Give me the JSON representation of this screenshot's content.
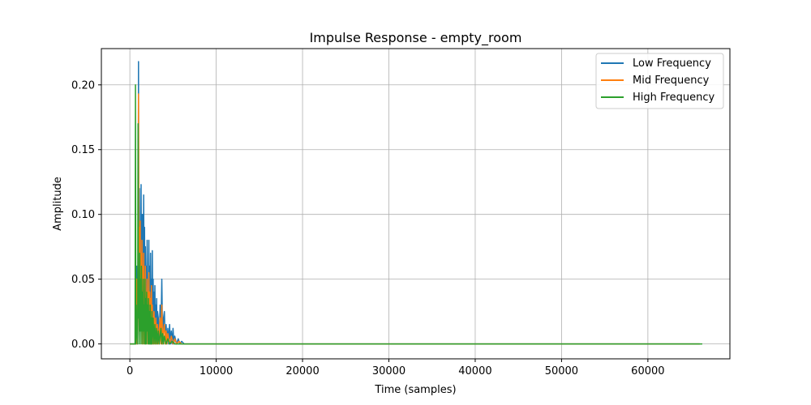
{
  "chart_data": {
    "type": "line",
    "title": "Impulse Response - empty_room",
    "xlabel": "Time (samples)",
    "ylabel": "Amplitude",
    "xlim": [
      -3300,
      69500
    ],
    "ylim": [
      -0.0115,
      0.228
    ],
    "xticks": [
      0,
      10000,
      20000,
      30000,
      40000,
      50000,
      60000
    ],
    "xtick_labels": [
      "0",
      "10000",
      "20000",
      "30000",
      "40000",
      "50000",
      "60000"
    ],
    "yticks": [
      0.0,
      0.05,
      0.1,
      0.15,
      0.2
    ],
    "ytick_labels": [
      "0.00",
      "0.05",
      "0.10",
      "0.15",
      "0.20"
    ],
    "grid": true,
    "legend_position": "top-right",
    "series": [
      {
        "name": "Low Frequency",
        "color": "#1f77b4",
        "points": [
          [
            0,
            0
          ],
          [
            650,
            0
          ],
          [
            700,
            0.02
          ],
          [
            750,
            0.0
          ],
          [
            800,
            0.06
          ],
          [
            850,
            0.02
          ],
          [
            900,
            0.0
          ],
          [
            950,
            0.04
          ],
          [
            1000,
            0.218
          ],
          [
            1050,
            0.02
          ],
          [
            1100,
            0.12
          ],
          [
            1150,
            0.06
          ],
          [
            1200,
            0.08
          ],
          [
            1250,
            0.03
          ],
          [
            1300,
            0.123
          ],
          [
            1350,
            0.05
          ],
          [
            1400,
            0.1
          ],
          [
            1450,
            0.04
          ],
          [
            1500,
            0.1
          ],
          [
            1550,
            0.02
          ],
          [
            1600,
            0.115
          ],
          [
            1650,
            0.03
          ],
          [
            1700,
            0.09
          ],
          [
            1750,
            0.01
          ],
          [
            1800,
            0.075
          ],
          [
            1850,
            0.03
          ],
          [
            1900,
            0.06
          ],
          [
            1950,
            0.02
          ],
          [
            2000,
            0.08
          ],
          [
            2050,
            0.03
          ],
          [
            2100,
            0.05
          ],
          [
            2150,
            0.01
          ],
          [
            2200,
            0.08
          ],
          [
            2250,
            0.02
          ],
          [
            2300,
            0.06
          ],
          [
            2350,
            0.0
          ],
          [
            2400,
            0.07
          ],
          [
            2450,
            0.02
          ],
          [
            2500,
            0.05
          ],
          [
            2550,
            0.0
          ],
          [
            2600,
            0.072
          ],
          [
            2650,
            0.02
          ],
          [
            2700,
            0.05
          ],
          [
            2750,
            0.0
          ],
          [
            2800,
            0.04
          ],
          [
            2850,
            0.01
          ],
          [
            2900,
            0.045
          ],
          [
            2950,
            0.0
          ],
          [
            3000,
            0.03
          ],
          [
            3050,
            0.01
          ],
          [
            3100,
            0.035
          ],
          [
            3150,
            0.0
          ],
          [
            3200,
            0.025
          ],
          [
            3300,
            0.02
          ],
          [
            3400,
            0.0
          ],
          [
            3500,
            0.03
          ],
          [
            3600,
            0.01
          ],
          [
            3700,
            0.05
          ],
          [
            3800,
            0.0
          ],
          [
            3900,
            0.02
          ],
          [
            4000,
            0.025
          ],
          [
            4100,
            0.0
          ],
          [
            4200,
            0.015
          ],
          [
            4300,
            0.0
          ],
          [
            4400,
            0.012
          ],
          [
            4500,
            0.0
          ],
          [
            4600,
            0.015
          ],
          [
            4700,
            0.0
          ],
          [
            4800,
            0.01
          ],
          [
            4900,
            0.0
          ],
          [
            5000,
            0.012
          ],
          [
            5100,
            0.0
          ],
          [
            5200,
            0.006
          ],
          [
            5400,
            0.0
          ],
          [
            5600,
            0.004
          ],
          [
            5800,
            0.0
          ],
          [
            6000,
            0.002
          ],
          [
            6300,
            0.0
          ],
          [
            66000,
            0.0
          ]
        ]
      },
      {
        "name": "Mid Frequency",
        "color": "#ff7f0e",
        "points": [
          [
            0,
            0
          ],
          [
            650,
            0
          ],
          [
            700,
            0.03
          ],
          [
            750,
            0.0
          ],
          [
            800,
            0.05
          ],
          [
            850,
            0.01
          ],
          [
            900,
            0.0
          ],
          [
            950,
            0.03
          ],
          [
            1000,
            0.193
          ],
          [
            1050,
            0.03
          ],
          [
            1100,
            0.09
          ],
          [
            1150,
            0.03
          ],
          [
            1200,
            0.095
          ],
          [
            1250,
            0.01
          ],
          [
            1300,
            0.07
          ],
          [
            1350,
            0.02
          ],
          [
            1400,
            0.08
          ],
          [
            1450,
            0.0
          ],
          [
            1500,
            0.06
          ],
          [
            1550,
            0.02
          ],
          [
            1600,
            0.07
          ],
          [
            1650,
            0.0
          ],
          [
            1700,
            0.05
          ],
          [
            1750,
            0.02
          ],
          [
            1800,
            0.06
          ],
          [
            1850,
            0.0
          ],
          [
            1900,
            0.04
          ],
          [
            1950,
            0.01
          ],
          [
            2000,
            0.05
          ],
          [
            2050,
            0.0
          ],
          [
            2100,
            0.04
          ],
          [
            2150,
            0.01
          ],
          [
            2200,
            0.055
          ],
          [
            2250,
            0.0
          ],
          [
            2300,
            0.04
          ],
          [
            2350,
            0.01
          ],
          [
            2400,
            0.035
          ],
          [
            2450,
            0.0
          ],
          [
            2500,
            0.045
          ],
          [
            2550,
            0.0
          ],
          [
            2600,
            0.03
          ],
          [
            2700,
            0.0
          ],
          [
            2800,
            0.025
          ],
          [
            2900,
            0.0
          ],
          [
            3000,
            0.02
          ],
          [
            3100,
            0.0
          ],
          [
            3200,
            0.015
          ],
          [
            3300,
            0.0
          ],
          [
            3500,
            0.02
          ],
          [
            3600,
            0.0
          ],
          [
            3700,
            0.03
          ],
          [
            3800,
            0.0
          ],
          [
            3900,
            0.01
          ],
          [
            4000,
            0.015
          ],
          [
            4100,
            0.0
          ],
          [
            4200,
            0.01
          ],
          [
            4300,
            0.0
          ],
          [
            4400,
            0.008
          ],
          [
            4600,
            0.0
          ],
          [
            4800,
            0.006
          ],
          [
            5000,
            0.0
          ],
          [
            5200,
            0.004
          ],
          [
            5400,
            0.0
          ],
          [
            5700,
            0.002
          ],
          [
            6000,
            0.0
          ],
          [
            66000,
            0.0
          ]
        ]
      },
      {
        "name": "High Frequency",
        "color": "#2ca02c",
        "points": [
          [
            0,
            0
          ],
          [
            600,
            0
          ],
          [
            650,
            0.2
          ],
          [
            700,
            0.0
          ],
          [
            750,
            0.03
          ],
          [
            800,
            0.01
          ],
          [
            900,
            0.0
          ],
          [
            950,
            0.17
          ],
          [
            1000,
            0.02
          ],
          [
            1050,
            0.05
          ],
          [
            1100,
            0.0
          ],
          [
            1150,
            0.07
          ],
          [
            1200,
            0.01
          ],
          [
            1250,
            0.05
          ],
          [
            1300,
            0.0
          ],
          [
            1350,
            0.06
          ],
          [
            1400,
            0.01
          ],
          [
            1450,
            0.04
          ],
          [
            1500,
            0.0
          ],
          [
            1550,
            0.05
          ],
          [
            1600,
            0.01
          ],
          [
            1650,
            0.03
          ],
          [
            1700,
            0.0
          ],
          [
            1750,
            0.05
          ],
          [
            1800,
            0.0
          ],
          [
            1850,
            0.035
          ],
          [
            1900,
            0.0
          ],
          [
            1950,
            0.04
          ],
          [
            2000,
            0.01
          ],
          [
            2050,
            0.03
          ],
          [
            2100,
            0.0
          ],
          [
            2150,
            0.035
          ],
          [
            2200,
            0.0
          ],
          [
            2250,
            0.025
          ],
          [
            2300,
            0.0
          ],
          [
            2350,
            0.03
          ],
          [
            2400,
            0.0
          ],
          [
            2450,
            0.02
          ],
          [
            2500,
            0.0
          ],
          [
            2550,
            0.025
          ],
          [
            2600,
            0.0
          ],
          [
            2700,
            0.02
          ],
          [
            2800,
            0.0
          ],
          [
            2900,
            0.015
          ],
          [
            3000,
            0.0
          ],
          [
            3100,
            0.012
          ],
          [
            3200,
            0.0
          ],
          [
            3300,
            0.01
          ],
          [
            3400,
            0.0
          ],
          [
            3600,
            0.012
          ],
          [
            3700,
            0.0
          ],
          [
            3800,
            0.008
          ],
          [
            3900,
            0.0
          ],
          [
            4000,
            0.006
          ],
          [
            4200,
            0.0
          ],
          [
            4400,
            0.004
          ],
          [
            4600,
            0.0
          ],
          [
            4900,
            0.002
          ],
          [
            5200,
            0.0
          ],
          [
            66300,
            0.0
          ]
        ]
      }
    ]
  }
}
